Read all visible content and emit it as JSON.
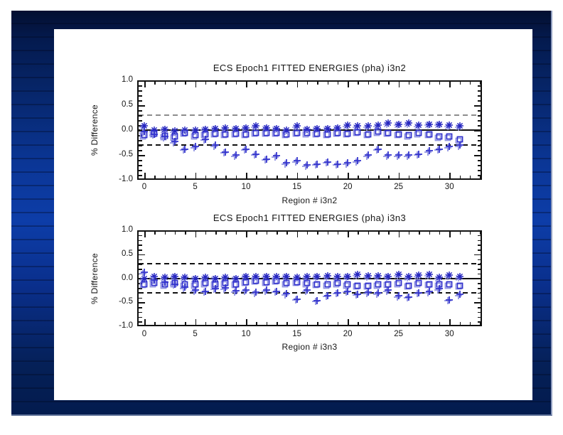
{
  "theme": {
    "frame_top_color": "#030f30",
    "frame_mid_color": "#0d3da8",
    "frame_bottom_color": "#031b4e",
    "content_background": "#ffffff",
    "plot_ink": "#111111"
  },
  "chart_data": [
    {
      "type": "scatter",
      "title": "ECS Epoch1 FITTED ENERGIES (pha) i3n2",
      "xlabel": "Region # i3n2",
      "ylabel": "% Difference",
      "xlim": [
        -0.7,
        33.2
      ],
      "ylim": [
        -1.0,
        1.0
      ],
      "xticks": [
        0,
        5,
        10,
        15,
        20,
        25,
        30
      ],
      "yticks": [
        1.0,
        0.5,
        0.0,
        -0.5,
        -1.0
      ],
      "ytick_labels": [
        "1.0",
        "0.5",
        "0.0",
        "-0.5",
        "-1.0"
      ],
      "grid": false,
      "legend": "none",
      "echo_color": "#9093e2",
      "x": [
        0,
        1,
        2,
        3,
        4,
        5,
        6,
        7,
        8,
        9,
        10,
        11,
        12,
        13,
        14,
        15,
        16,
        17,
        18,
        19,
        20,
        21,
        22,
        23,
        24,
        25,
        26,
        27,
        28,
        29,
        30,
        31
      ],
      "reference_lines": [
        {
          "value": 0.3,
          "style": "dashed",
          "color": "#8c8c8c",
          "weight": 1.5
        },
        {
          "value": 0.0,
          "style": "solid",
          "color": "#111111",
          "weight": 2
        },
        {
          "value": -0.3,
          "style": "dashed",
          "color": "#111111",
          "weight": 2
        }
      ],
      "series": [
        {
          "name": "asterisk",
          "marker": "asterisk",
          "color": "#2525c0",
          "values": [
            0.08,
            0.0,
            0.02,
            -0.02,
            0.0,
            0.0,
            0.02,
            0.03,
            0.04,
            0.03,
            0.05,
            0.08,
            0.05,
            0.03,
            0.0,
            0.08,
            0.02,
            0.03,
            0.03,
            0.05,
            0.1,
            0.08,
            0.08,
            0.1,
            0.14,
            0.12,
            0.14,
            0.1,
            0.12,
            0.12,
            0.1,
            0.08
          ]
        },
        {
          "name": "square",
          "marker": "square",
          "color": "#2e2ecc",
          "values": [
            -0.1,
            -0.07,
            -0.12,
            -0.13,
            -0.05,
            -0.1,
            -0.08,
            -0.07,
            -0.08,
            -0.07,
            -0.08,
            -0.05,
            -0.05,
            -0.05,
            -0.08,
            -0.05,
            -0.06,
            -0.07,
            -0.08,
            -0.05,
            -0.07,
            -0.04,
            -0.08,
            -0.03,
            -0.05,
            -0.08,
            -0.1,
            -0.06,
            -0.08,
            -0.13,
            -0.13,
            -0.19
          ]
        },
        {
          "name": "plus",
          "marker": "plus",
          "color": "#3434cd",
          "values": [
            -0.03,
            -0.08,
            -0.13,
            -0.23,
            -0.38,
            -0.33,
            -0.18,
            -0.3,
            -0.44,
            -0.5,
            -0.38,
            -0.48,
            -0.58,
            -0.52,
            -0.66,
            -0.62,
            -0.7,
            -0.68,
            -0.64,
            -0.68,
            -0.66,
            -0.62,
            -0.5,
            -0.38,
            -0.5,
            -0.5,
            -0.5,
            -0.48,
            -0.42,
            -0.38,
            -0.33,
            -0.3
          ]
        }
      ]
    },
    {
      "type": "scatter",
      "title": "ECS Epoch1 FITTED ENERGIES (pha) i3n3",
      "xlabel": "Region # i3n3",
      "ylabel": "% Difference",
      "xlim": [
        -0.7,
        33.2
      ],
      "ylim": [
        -1.0,
        1.0
      ],
      "xticks": [
        0,
        5,
        10,
        15,
        20,
        25,
        30
      ],
      "yticks": [
        1.0,
        0.5,
        0.0,
        -0.5,
        -1.0
      ],
      "ytick_labels": [
        "1.0",
        "0.5",
        "0.0",
        "-0.5",
        "-1.0"
      ],
      "grid": false,
      "legend": "none",
      "echo_color": "#9093e2",
      "x": [
        0,
        1,
        2,
        3,
        4,
        5,
        6,
        7,
        8,
        9,
        10,
        11,
        12,
        13,
        14,
        15,
        16,
        17,
        18,
        19,
        20,
        21,
        22,
        23,
        24,
        25,
        26,
        27,
        28,
        29,
        30,
        31
      ],
      "reference_lines": [
        {
          "value": 0.3,
          "style": "dashed",
          "color": "#111111",
          "weight": 2
        },
        {
          "value": 0.0,
          "style": "solid",
          "color": "#111111",
          "weight": 2
        },
        {
          "value": -0.3,
          "style": "dashed",
          "color": "#111111",
          "weight": 2
        }
      ],
      "series": [
        {
          "name": "asterisk",
          "marker": "asterisk",
          "color": "#2525c0",
          "values": [
            -0.01,
            0.03,
            0.02,
            0.04,
            0.02,
            0.0,
            0.02,
            0.0,
            0.02,
            0.0,
            0.04,
            0.03,
            0.04,
            0.03,
            0.04,
            0.02,
            0.03,
            0.04,
            0.05,
            0.03,
            0.04,
            0.08,
            0.05,
            0.05,
            0.04,
            0.08,
            0.03,
            0.06,
            0.08,
            0.02,
            0.06,
            0.03
          ]
        },
        {
          "name": "square",
          "marker": "square",
          "color": "#2e2ecc",
          "values": [
            -0.12,
            -0.1,
            -0.13,
            -0.1,
            -0.13,
            -0.13,
            -0.1,
            -0.12,
            -0.1,
            -0.12,
            -0.08,
            -0.05,
            -0.08,
            -0.05,
            -0.1,
            -0.08,
            -0.1,
            -0.12,
            -0.13,
            -0.1,
            -0.13,
            -0.15,
            -0.15,
            -0.13,
            -0.12,
            -0.1,
            -0.15,
            -0.1,
            -0.12,
            -0.13,
            -0.13,
            -0.15
          ]
        },
        {
          "name": "plus",
          "marker": "plus",
          "color": "#3434cd",
          "values": [
            0.12,
            -0.03,
            -0.08,
            -0.12,
            -0.19,
            -0.25,
            -0.27,
            -0.21,
            -0.2,
            -0.26,
            -0.25,
            -0.29,
            -0.25,
            -0.27,
            -0.32,
            -0.43,
            -0.25,
            -0.46,
            -0.36,
            -0.3,
            -0.27,
            -0.33,
            -0.29,
            -0.31,
            -0.25,
            -0.37,
            -0.39,
            -0.3,
            -0.28,
            -0.22,
            -0.45,
            -0.34
          ]
        }
      ]
    }
  ]
}
